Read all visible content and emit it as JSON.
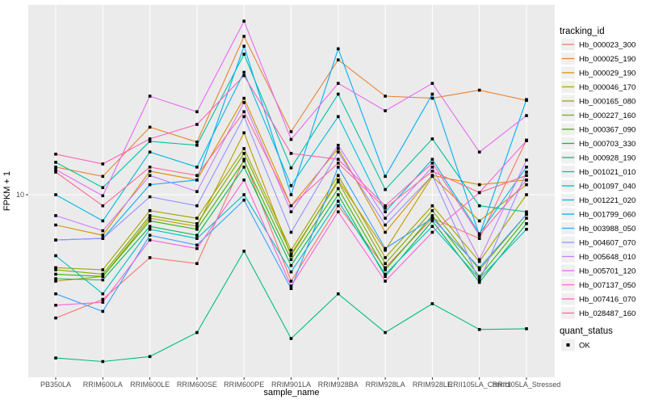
{
  "figure": {
    "kind": "ggplot-line-chart",
    "x_axis_title": "sample_name",
    "y_axis_title": "FPKM + 1",
    "y_tick_labels": [
      "10"
    ],
    "legend": {
      "tracking_title": "tracking_id",
      "quant_title": "quant_status",
      "quant_items": [
        {
          "label": "OK",
          "marker": "black-square"
        }
      ]
    }
  },
  "colors": {
    "page_bg": "#FFFFFF",
    "panel_bg": "#EBEBEB",
    "grid": "#FFFFFF",
    "axis_text": "#4D4D4D",
    "title_text": "#000000",
    "tick_mark": "#333333",
    "point_marker": "#000000",
    "legend_key_bg": "#F0F0F0"
  },
  "chart_data": {
    "type": "line",
    "title": "",
    "xlabel": "sample_name",
    "ylabel": "FPKM + 1",
    "y_scale": "log10",
    "ylim_approx": [
      1.9,
      60
    ],
    "grid": "white-on-gray",
    "legend_position": "right",
    "point_marker": "small black square (quant_status = OK)",
    "categories": [
      "PB350LA",
      "RRIM600LA",
      "RRIM600LE",
      "RRIM600SE",
      "RRIM600PE",
      "RRIM901LA",
      "RRIM928BA",
      "RRIM928LA",
      "RRIM928LE",
      "RRII105LA_Control",
      "RRII105LA_Stressed"
    ],
    "series": [
      {
        "name": "Hb_000023_300",
        "color": "#F8766D",
        "values": [
          3.1,
          3.7,
          5.5,
          5.2,
          14,
          4.4,
          9,
          5,
          8,
          6.6,
          16.8
        ]
      },
      {
        "name": "Hb_000025_190",
        "color": "#EA8331",
        "values": [
          13,
          11.9,
          19,
          16.5,
          45,
          18.2,
          36,
          25.5,
          25,
          27,
          24.5
        ]
      },
      {
        "name": "Hb_000029_190",
        "color": "#D89000",
        "values": [
          7.5,
          6.8,
          12.5,
          11.5,
          25,
          9,
          15.5,
          7,
          12,
          11,
          11.5
        ]
      },
      {
        "name": "Hb_000046_170",
        "color": "#C09B00",
        "values": [
          4.4,
          4.6,
          8,
          7.4,
          18,
          5.6,
          11.5,
          5.9,
          11.9,
          7.8,
          11
        ]
      },
      {
        "name": "Hb_000165_080",
        "color": "#A3A500",
        "values": [
          5,
          4.9,
          8.6,
          8,
          15.5,
          5.9,
          12,
          5.5,
          9,
          5.3,
          10
        ]
      },
      {
        "name": "Hb_000227_160",
        "color": "#7CAE00",
        "values": [
          4.9,
          4.7,
          8.2,
          7.6,
          14.8,
          5.7,
          11.3,
          5.2,
          8.6,
          4.9,
          8.3
        ]
      },
      {
        "name": "Hb_000367_090",
        "color": "#39B600",
        "values": [
          4.7,
          4.6,
          7.8,
          7.2,
          13.8,
          5.4,
          10.6,
          4.9,
          8.2,
          4.6,
          8
        ]
      },
      {
        "name": "Hb_000703_330",
        "color": "#00BB4E",
        "values": [
          4.5,
          4.45,
          7.4,
          6.8,
          13,
          5.1,
          10,
          4.6,
          7.8,
          4.35,
          7.6
        ]
      },
      {
        "name": "Hb_000928_190",
        "color": "#00BF7D",
        "values": [
          2.12,
          2.05,
          2.15,
          2.7,
          5.85,
          2.55,
          3.9,
          2.7,
          3.55,
          2.78,
          2.8
        ]
      },
      {
        "name": "Hb_001021_010",
        "color": "#00C1A3",
        "values": [
          13.6,
          10.7,
          16.6,
          16,
          38,
          12.9,
          26,
          10.5,
          17,
          9,
          8.5
        ]
      },
      {
        "name": "Hb_001097_040",
        "color": "#00BFC4",
        "values": [
          5.6,
          3.9,
          7.2,
          6.6,
          10,
          4.8,
          9.4,
          4.7,
          7.4,
          4.5,
          7.2
        ]
      },
      {
        "name": "Hb_001221_020",
        "color": "#00BAE0",
        "values": [
          10,
          7.8,
          15,
          13,
          32,
          10.9,
          21,
          8.5,
          14,
          6.9,
          13
        ]
      },
      {
        "name": "Hb_001799_060",
        "color": "#00B0F6",
        "values": [
          6.5,
          6.6,
          11,
          11.5,
          41,
          10,
          40,
          11.9,
          26,
          6.8,
          24.7
        ]
      },
      {
        "name": "Hb_003988_050",
        "color": "#35A2FF",
        "values": [
          3.9,
          3.3,
          6.8,
          6.2,
          9.5,
          4.1,
          13,
          6,
          8,
          5,
          8.3
        ]
      },
      {
        "name": "Hb_004607_070",
        "color": "#9590FF",
        "values": [
          6.5,
          6.6,
          9.8,
          9,
          21,
          7,
          15,
          7.5,
          12,
          4.4,
          12.4
        ]
      },
      {
        "name": "Hb_005648_010",
        "color": "#C77CFF",
        "values": [
          8.2,
          7.1,
          12,
          10.3,
          24,
          8.5,
          16,
          8,
          13,
          5.4,
          13.9
        ]
      },
      {
        "name": "Hb_005701_120",
        "color": "#E76BF3",
        "values": [
          12.7,
          9.9,
          25.5,
          22,
          52,
          16.9,
          28.8,
          22.2,
          28.8,
          15,
          21.2
        ]
      },
      {
        "name": "Hb_007137_050",
        "color": "#FA62DB",
        "values": [
          3.5,
          3.6,
          6.5,
          6,
          11.5,
          4.2,
          8.5,
          4.4,
          7,
          10.2,
          16.7
        ]
      },
      {
        "name": "Hb_007416_070",
        "color": "#FF62BC",
        "values": [
          14.7,
          13.4,
          17,
          19.5,
          31,
          14.8,
          14,
          9,
          13.5,
          6.8,
          11.5
        ]
      },
      {
        "name": "Hb_028487_160",
        "color": "#FF6A98",
        "values": [
          12.4,
          9,
          13,
          12,
          22,
          9,
          13.5,
          8.8,
          12.5,
          10.2,
          12
        ]
      }
    ]
  }
}
